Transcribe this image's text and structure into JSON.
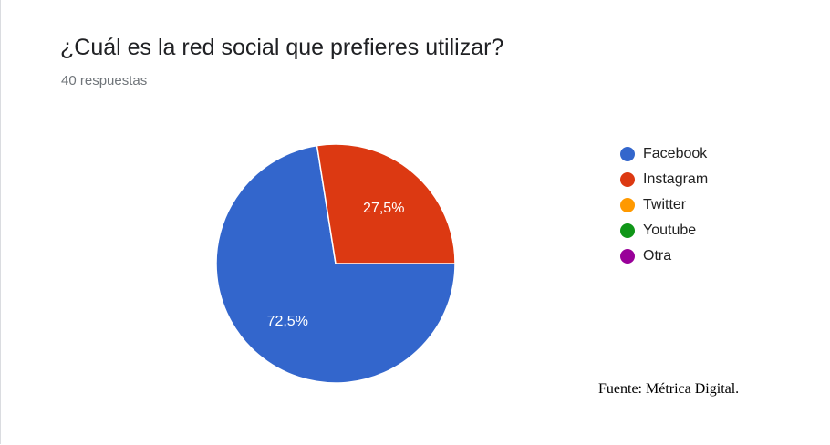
{
  "chart_data": {
    "type": "pie",
    "title": "¿Cuál es la red social que prefieres utilizar?",
    "subtitle": "40 respuestas",
    "categories": [
      "Facebook",
      "Instagram",
      "Twitter",
      "Youtube",
      "Otra"
    ],
    "values": [
      72.5,
      27.5,
      0,
      0,
      0
    ],
    "data_labels": [
      "72,5%",
      "27,5%",
      "",
      "",
      ""
    ],
    "colors": [
      "#3366cc",
      "#dc3912",
      "#ff9900",
      "#109618",
      "#990099"
    ],
    "legend_position": "right"
  },
  "source": "Fuente: Métrica Digital."
}
